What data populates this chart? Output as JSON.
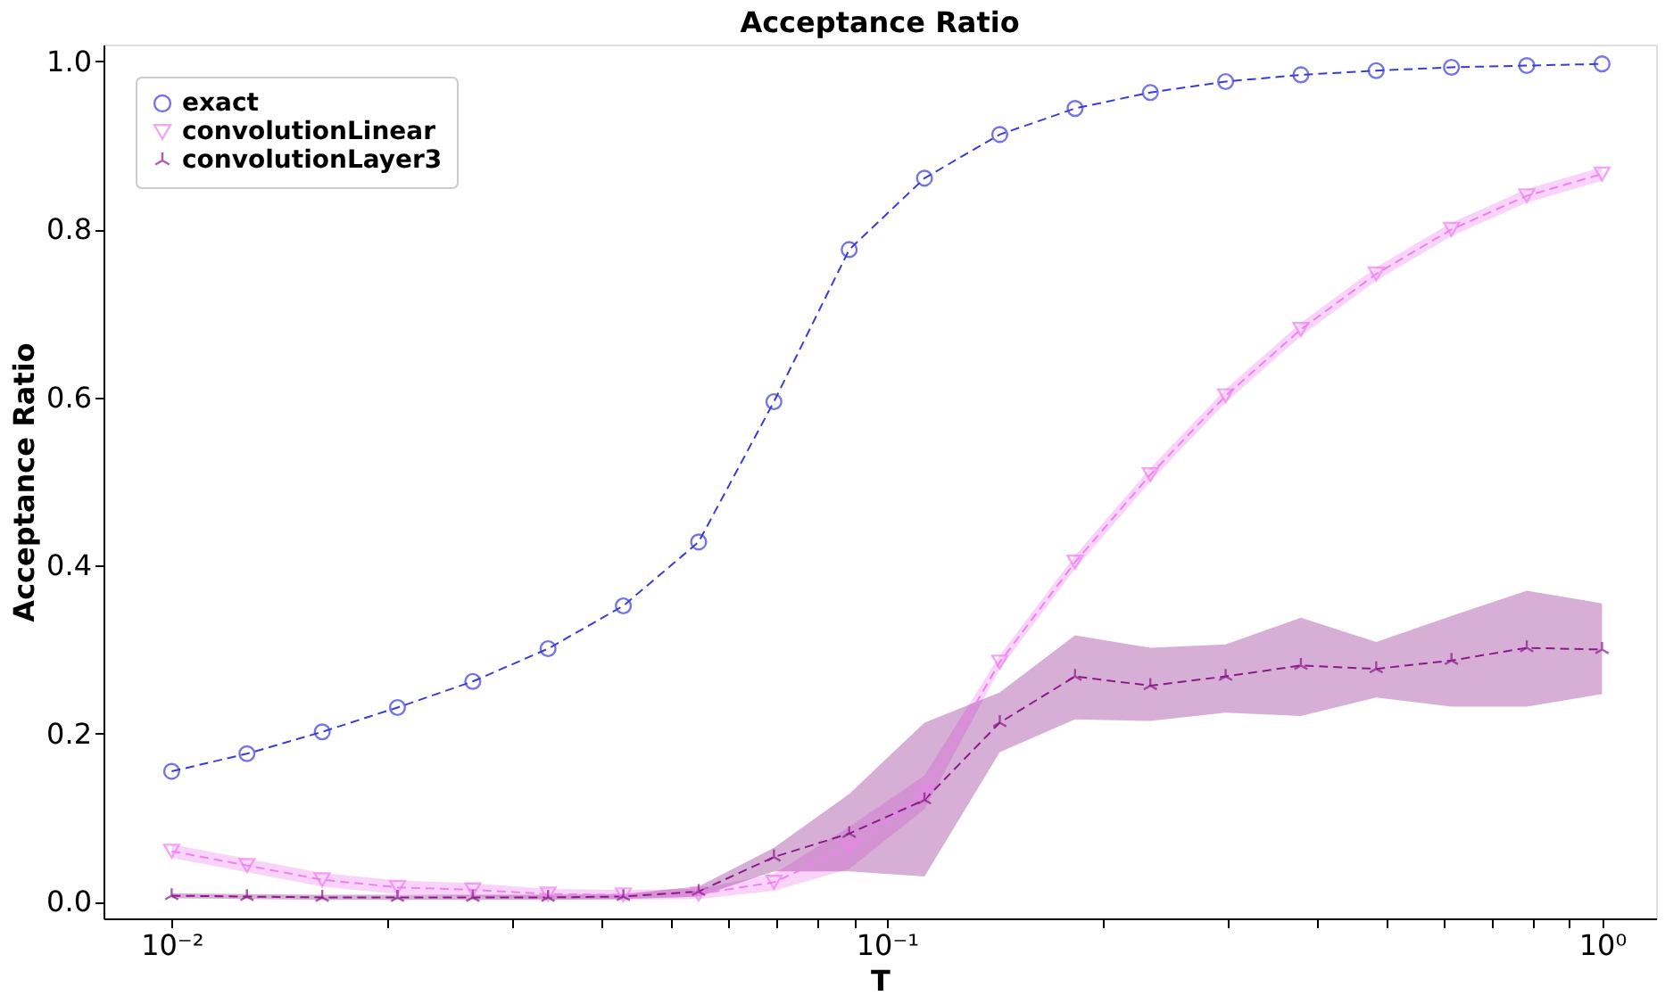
{
  "chart_data": {
    "type": "line",
    "title": "Acceptance Ratio",
    "xlabel": "T",
    "ylabel": "Acceptance Ratio",
    "x": [
      0.01,
      0.012743,
      0.016238,
      0.020691,
      0.026367,
      0.033598,
      0.042813,
      0.054556,
      0.069519,
      0.088587,
      0.112884,
      0.143845,
      0.183298,
      0.233572,
      0.297635,
      0.379269,
      0.483293,
      0.615848,
      0.78476,
      1.0
    ],
    "series": [
      {
        "name": "exact",
        "color": "#3b3bdb",
        "marker": "circle",
        "line_style": "dashed",
        "values": [
          0.155,
          0.176,
          0.202,
          0.231,
          0.262,
          0.301,
          0.352,
          0.428,
          0.595,
          0.776,
          0.861,
          0.913,
          0.944,
          0.963,
          0.976,
          0.984,
          0.989,
          0.993,
          0.995,
          0.997
        ]
      },
      {
        "name": "convolutionLinear",
        "color": "#ee82ee",
        "marker": "triangle",
        "line_style": "dashed",
        "values": [
          0.06,
          0.043,
          0.026,
          0.017,
          0.014,
          0.009,
          0.008,
          0.009,
          0.023,
          0.064,
          0.13,
          0.285,
          0.404,
          0.508,
          0.602,
          0.681,
          0.747,
          0.8,
          0.84,
          0.866
        ],
        "lower": [
          0.052,
          0.035,
          0.018,
          0.009,
          0.006,
          0.003,
          0.002,
          0.003,
          0.013,
          0.039,
          0.11,
          0.277,
          0.396,
          0.5,
          0.594,
          0.673,
          0.739,
          0.792,
          0.832,
          0.858
        ],
        "upper": [
          0.068,
          0.051,
          0.034,
          0.025,
          0.022,
          0.015,
          0.014,
          0.015,
          0.033,
          0.089,
          0.15,
          0.293,
          0.412,
          0.516,
          0.61,
          0.689,
          0.755,
          0.808,
          0.848,
          0.874
        ]
      },
      {
        "name": "convolutionLayer3",
        "color": "#8b1a89",
        "marker": "cross",
        "line_style": "dashed",
        "values": [
          0.007,
          0.006,
          0.005,
          0.005,
          0.005,
          0.005,
          0.006,
          0.012,
          0.053,
          0.081,
          0.121,
          0.213,
          0.268,
          0.257,
          0.268,
          0.281,
          0.277,
          0.287,
          0.302,
          0.3
        ],
        "lower": [
          0.004,
          0.003,
          0.002,
          0.002,
          0.002,
          0.002,
          0.003,
          0.006,
          0.036,
          0.036,
          0.03,
          0.178,
          0.217,
          0.215,
          0.225,
          0.221,
          0.243,
          0.232,
          0.232,
          0.247
        ],
        "upper": [
          0.01,
          0.009,
          0.008,
          0.008,
          0.008,
          0.008,
          0.009,
          0.018,
          0.064,
          0.128,
          0.213,
          0.249,
          0.317,
          0.302,
          0.306,
          0.338,
          0.309,
          0.34,
          0.37,
          0.355
        ]
      }
    ],
    "log": "x",
    "xlim": [
      0.00803,
      1.19
    ],
    "xticks": [
      {
        "value": 0.01,
        "label": "10⁻²"
      },
      {
        "value": 0.02,
        "label": null
      },
      {
        "value": 0.03,
        "label": null
      },
      {
        "value": 0.04,
        "label": null
      },
      {
        "value": 0.05,
        "label": null
      },
      {
        "value": 0.06,
        "label": null
      },
      {
        "value": 0.07,
        "label": null
      },
      {
        "value": 0.08,
        "label": null
      },
      {
        "value": 0.09,
        "label": null
      },
      {
        "value": 0.1,
        "label": "10⁻¹"
      },
      {
        "value": 0.2,
        "label": null
      },
      {
        "value": 0.3,
        "label": null
      },
      {
        "value": 0.4,
        "label": null
      },
      {
        "value": 0.5,
        "label": null
      },
      {
        "value": 0.6,
        "label": null
      },
      {
        "value": 0.7,
        "label": null
      },
      {
        "value": 0.8,
        "label": null
      },
      {
        "value": 0.9,
        "label": null
      },
      {
        "value": 1.0,
        "label": "10⁰"
      }
    ],
    "ylim": [
      -0.02,
      1.02
    ],
    "yticks": [
      {
        "value": 0,
        "label": "0.0"
      },
      0.2,
      0.4,
      0.6,
      0.8,
      {
        "value": 1.0,
        "label": "1.0"
      }
    ],
    "grid": false,
    "legend": "top left"
  }
}
